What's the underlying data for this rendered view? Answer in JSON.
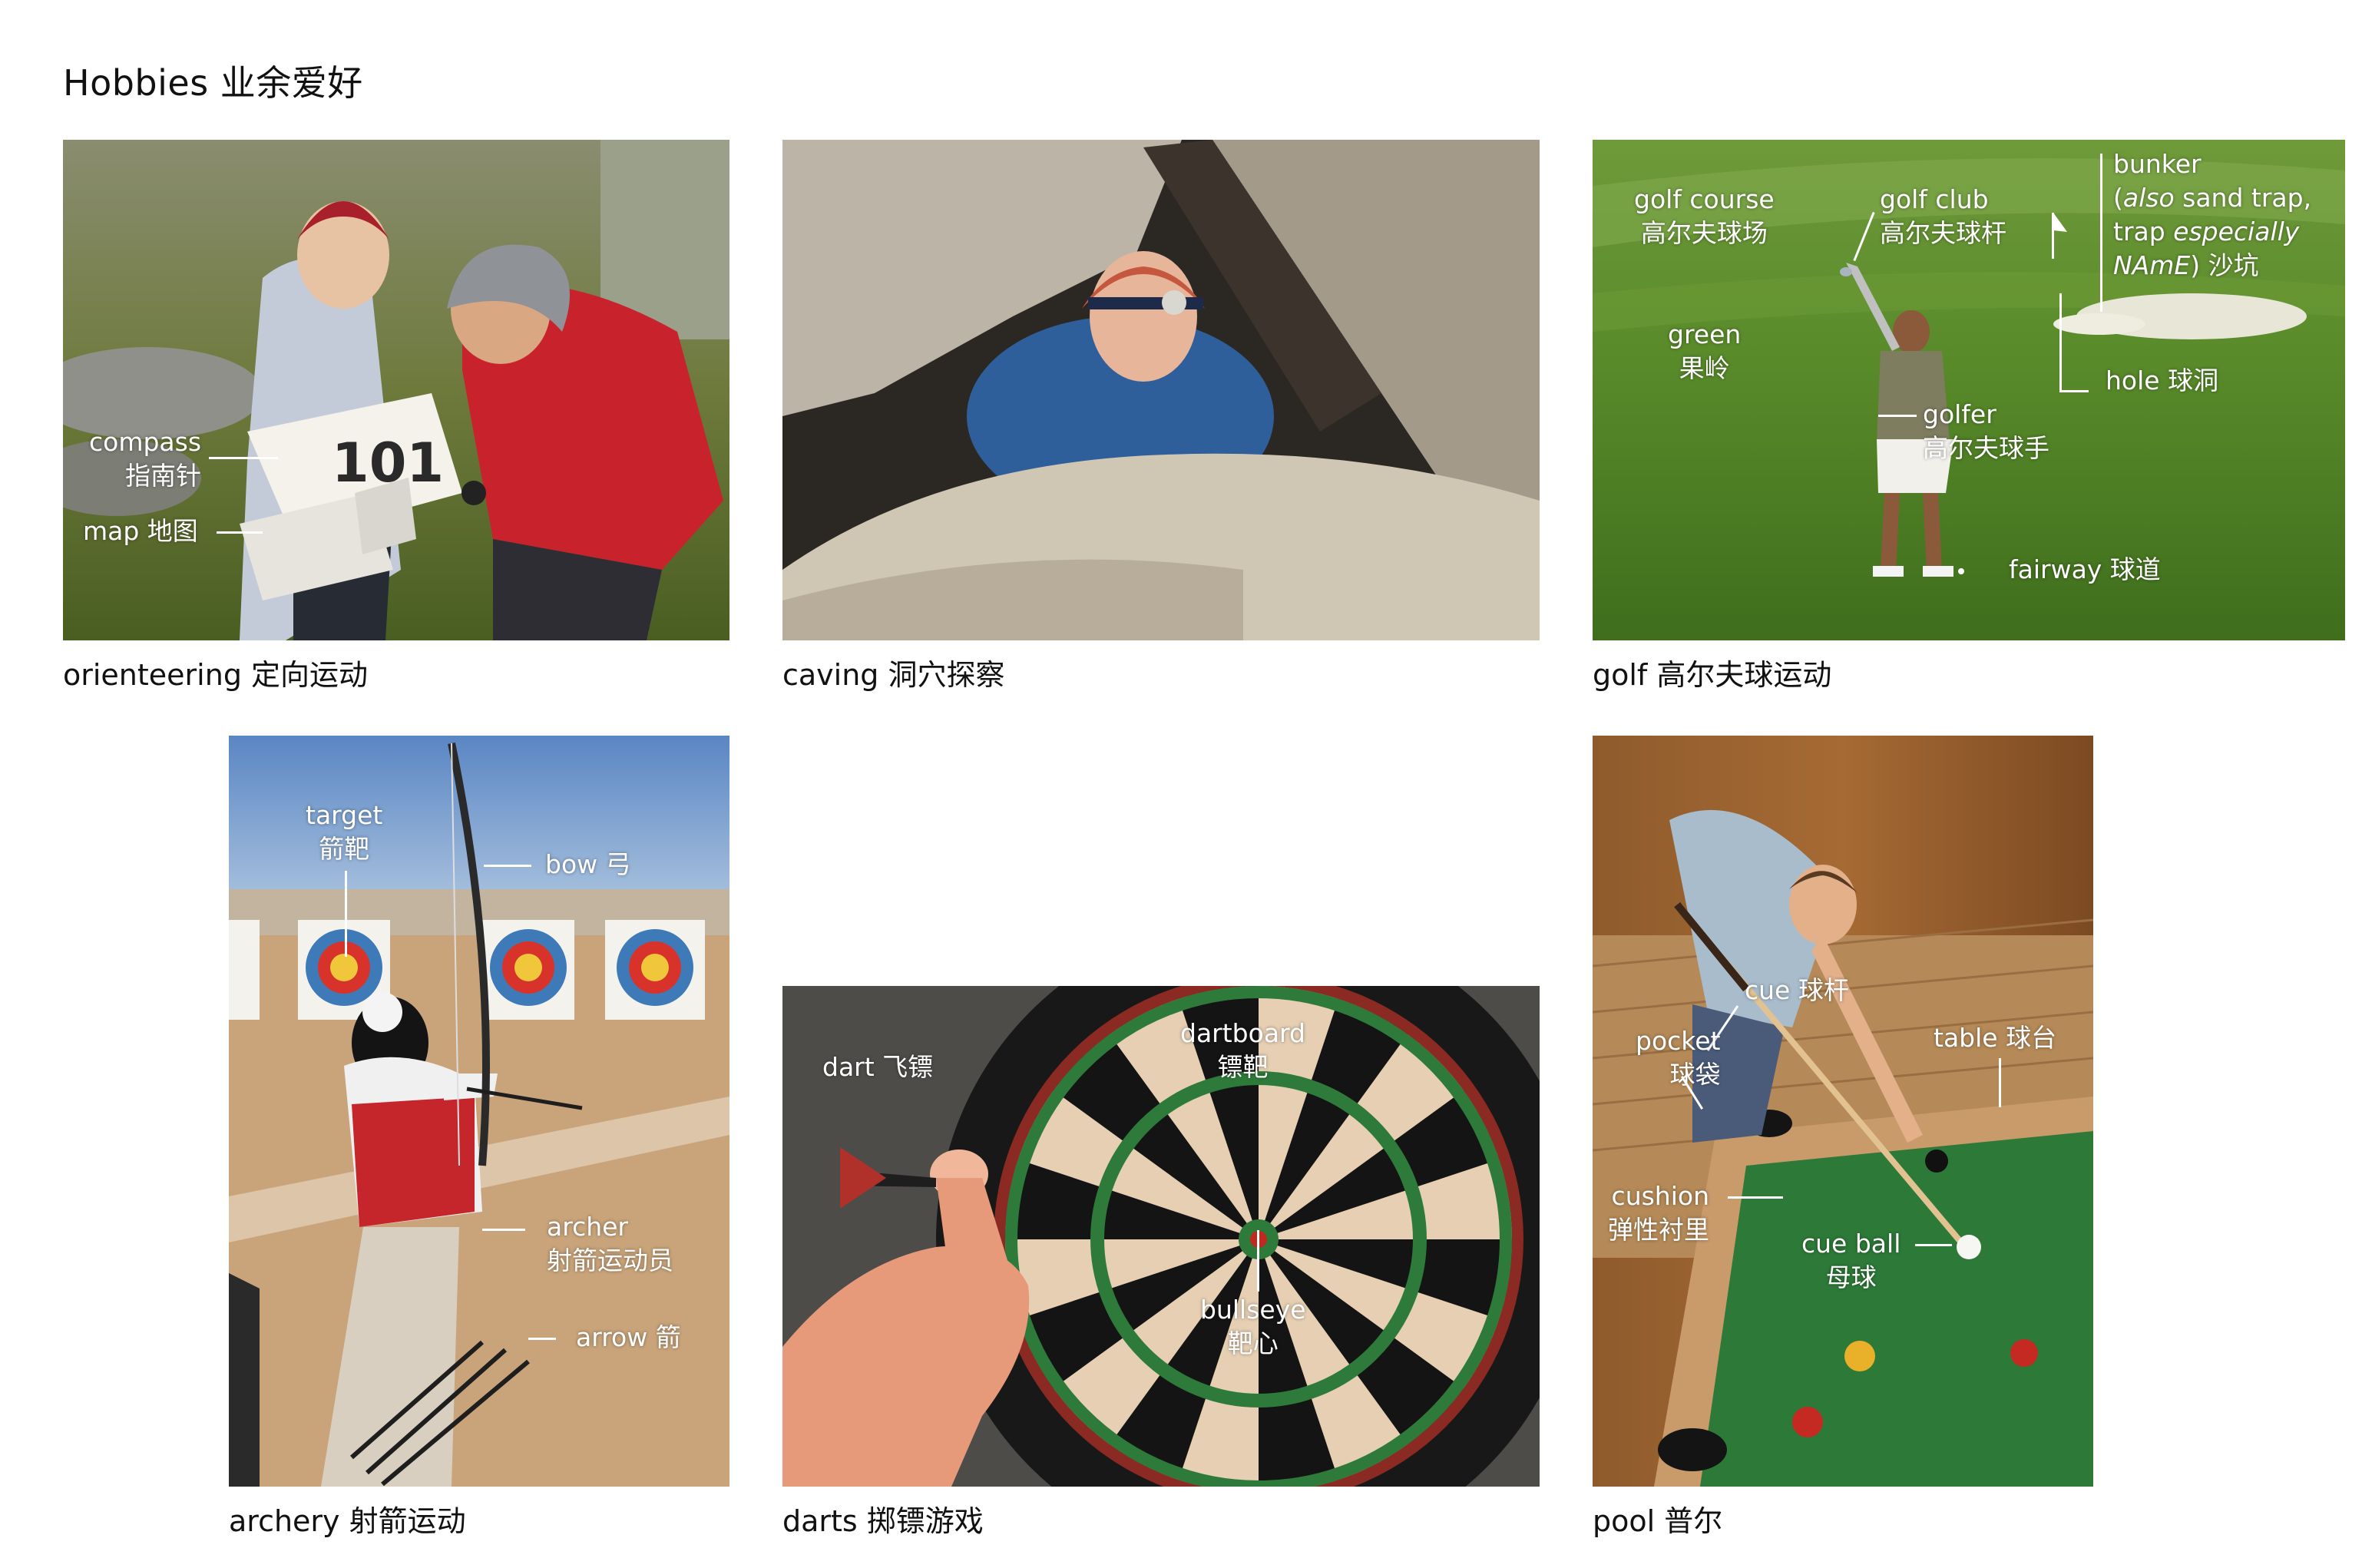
{
  "page": {
    "title": "Hobbies  业余爱好"
  },
  "panels": {
    "orienteering": {
      "caption": "orienteering  定向运动",
      "labels": {
        "compass_en": "compass",
        "compass_zh": "指南针",
        "map": "map 地图"
      }
    },
    "caving": {
      "caption": "caving  洞穴探察"
    },
    "golf": {
      "caption": "golf  高尔夫球运动",
      "labels": {
        "course_en": "golf course",
        "course_zh": "高尔夫球场",
        "club_en": "golf club",
        "club_zh": "高尔夫球杆",
        "bunker_1": "bunker",
        "bunker_2a": "(",
        "bunker_2b": "also",
        "bunker_2c": " sand trap,",
        "bunker_3a": "trap ",
        "bunker_3b": "especially",
        "bunker_4a": "NAmE",
        "bunker_4b": ") 沙坑",
        "green_en": "green",
        "green_zh": "果岭",
        "hole": "hole 球洞",
        "golfer_en": "golfer",
        "golfer_zh": "高尔夫球手",
        "fairway": "fairway 球道"
      }
    },
    "archery": {
      "caption": "archery  射箭运动",
      "labels": {
        "target_en": "target",
        "target_zh": "箭靶",
        "bow": "bow 弓",
        "archer_en": "archer",
        "archer_zh": "射箭运动员",
        "arrow": "arrow 箭"
      }
    },
    "darts": {
      "caption": "darts  掷镖游戏",
      "labels": {
        "dart": "dart 飞镖",
        "board_en": "dartboard",
        "board_zh": "镖靶",
        "bull_en": "bullseye",
        "bull_zh": "靶心"
      }
    },
    "pool": {
      "caption": "pool  普尔",
      "labels": {
        "cue": "cue 球杆",
        "pocket_en": "pocket",
        "pocket_zh": "球袋",
        "table": "table 球台",
        "cushion_en": "cushion",
        "cushion_zh": "弹性衬里",
        "cueball_en": "cue ball",
        "cueball_zh": "母球"
      }
    }
  }
}
